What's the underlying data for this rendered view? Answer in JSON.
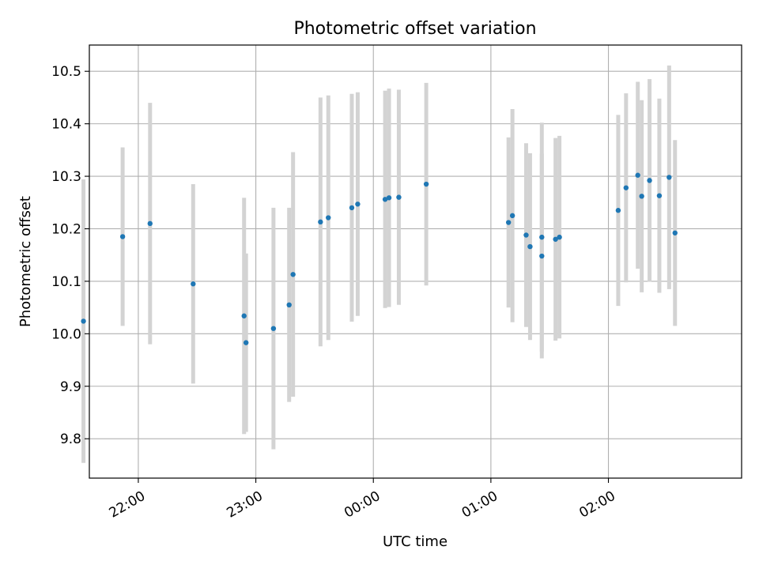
{
  "chart_data": {
    "type": "scatter",
    "title": "Photometric offset variation",
    "xlabel": "UTC time",
    "ylabel": "Photometric offset",
    "grid": true,
    "x_range": [
      "21:35",
      "03:08"
    ],
    "ylim": [
      9.725,
      10.55
    ],
    "x_ticks": [
      "22:00",
      "23:00",
      "00:00",
      "01:00",
      "02:00"
    ],
    "y_ticks": [
      "9.8",
      "9.9",
      "10.0",
      "10.1",
      "10.2",
      "10.3",
      "10.4",
      "10.5"
    ],
    "colors": {
      "points": "#1f77b4",
      "errorbars": "#d3d3d3",
      "grid": "#b0b0b0"
    },
    "points": [
      {
        "t": "21:32",
        "y": 10.024,
        "err": 0.27
      },
      {
        "t": "21:52",
        "y": 10.185,
        "err": 0.17
      },
      {
        "t": "22:06",
        "y": 10.21,
        "err": 0.23
      },
      {
        "t": "22:28",
        "y": 10.095,
        "err": 0.19
      },
      {
        "t": "22:54",
        "y": 10.034,
        "err": 0.225
      },
      {
        "t": "22:55",
        "y": 9.983,
        "err": 0.17
      },
      {
        "t": "23:09",
        "y": 10.01,
        "err": 0.23
      },
      {
        "t": "23:17",
        "y": 10.055,
        "err": 0.185
      },
      {
        "t": "23:19",
        "y": 10.113,
        "err": 0.233
      },
      {
        "t": "23:33",
        "y": 10.213,
        "err": 0.237
      },
      {
        "t": "23:37",
        "y": 10.221,
        "err": 0.233
      },
      {
        "t": "23:49",
        "y": 10.24,
        "err": 0.217
      },
      {
        "t": "23:52",
        "y": 10.247,
        "err": 0.213
      },
      {
        "t": "00:06",
        "y": 10.256,
        "err": 0.207
      },
      {
        "t": "00:08",
        "y": 10.259,
        "err": 0.208
      },
      {
        "t": "00:13",
        "y": 10.26,
        "err": 0.205
      },
      {
        "t": "00:27",
        "y": 10.285,
        "err": 0.193
      },
      {
        "t": "01:09",
        "y": 10.212,
        "err": 0.162
      },
      {
        "t": "01:11",
        "y": 10.225,
        "err": 0.203
      },
      {
        "t": "01:18",
        "y": 10.188,
        "err": 0.175
      },
      {
        "t": "01:20",
        "y": 10.166,
        "err": 0.178
      },
      {
        "t": "01:26",
        "y": 10.148,
        "err": 0.195
      },
      {
        "t": "01:26",
        "y": 10.184,
        "err": 0.218
      },
      {
        "t": "01:33",
        "y": 10.18,
        "err": 0.193
      },
      {
        "t": "01:35",
        "y": 10.184,
        "err": 0.193
      },
      {
        "t": "02:05",
        "y": 10.235,
        "err": 0.182
      },
      {
        "t": "02:09",
        "y": 10.278,
        "err": 0.18
      },
      {
        "t": "02:15",
        "y": 10.302,
        "err": 0.178
      },
      {
        "t": "02:17",
        "y": 10.262,
        "err": 0.183
      },
      {
        "t": "02:21",
        "y": 10.292,
        "err": 0.193
      },
      {
        "t": "02:26",
        "y": 10.263,
        "err": 0.185
      },
      {
        "t": "02:31",
        "y": 10.298,
        "err": 0.213
      },
      {
        "t": "02:34",
        "y": 10.192,
        "err": 0.177
      }
    ]
  }
}
